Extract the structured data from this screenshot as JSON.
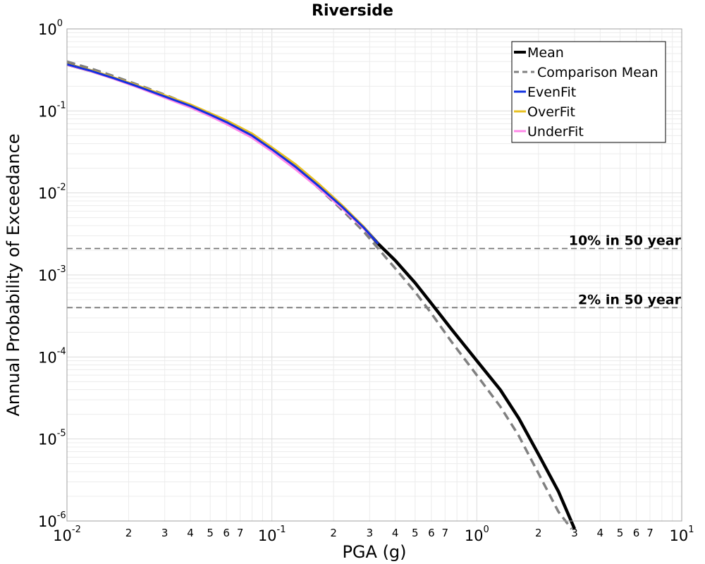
{
  "chart_data": {
    "type": "line",
    "title": "Riverside",
    "xlabel": "PGA (g)",
    "ylabel": "Annual Probability of Exceedance",
    "x_scale": "log",
    "y_scale": "log",
    "xlim": [
      0.01,
      10
    ],
    "ylim": [
      1e-06,
      1
    ],
    "grid": true,
    "legend_position": "top-right",
    "x_major_ticks": [
      {
        "base": "10",
        "exp": "-2",
        "value": 0.01
      },
      {
        "base": "10",
        "exp": "-1",
        "value": 0.1
      },
      {
        "base": "10",
        "exp": "0",
        "value": 1
      },
      {
        "base": "10",
        "exp": "1",
        "value": 10
      }
    ],
    "x_minor_tick_labels": [
      "2",
      "3",
      "4",
      "5",
      "6",
      "7"
    ],
    "y_major_ticks": [
      {
        "base": "10",
        "exp": "0",
        "value": 1
      },
      {
        "base": "10",
        "exp": "-1",
        "value": 0.1
      },
      {
        "base": "10",
        "exp": "-2",
        "value": 0.01
      },
      {
        "base": "10",
        "exp": "-3",
        "value": 0.001
      },
      {
        "base": "10",
        "exp": "-4",
        "value": 0.0001
      },
      {
        "base": "10",
        "exp": "-5",
        "value": 1e-05
      },
      {
        "base": "10",
        "exp": "-6",
        "value": 1e-06
      }
    ],
    "reference_lines": [
      {
        "label": "10% in 50 year",
        "y": 0.0021,
        "color": "#777777"
      },
      {
        "label": "2% in 50 year",
        "y": 0.0004,
        "color": "#777777"
      }
    ],
    "series": [
      {
        "name": "Mean",
        "color": "#000000",
        "style": "solid",
        "x": [
          0.01,
          0.013,
          0.017,
          0.022,
          0.03,
          0.04,
          0.05,
          0.06,
          0.08,
          0.1,
          0.13,
          0.17,
          0.22,
          0.28,
          0.33,
          0.4,
          0.5,
          0.6,
          0.75,
          1.0,
          1.3,
          1.6,
          2.0,
          2.5,
          3.0
        ],
        "y": [
          0.37,
          0.31,
          0.25,
          0.2,
          0.15,
          0.115,
          0.09,
          0.073,
          0.05,
          0.034,
          0.021,
          0.012,
          0.0068,
          0.0038,
          0.0024,
          0.0015,
          0.0008,
          0.00045,
          0.00022,
          9e-05,
          4e-05,
          1.8e-05,
          6.5e-06,
          2.3e-06,
          8e-07
        ]
      },
      {
        "name": "Comparison Mean",
        "color": "#808080",
        "style": "dashed",
        "x": [
          0.01,
          0.013,
          0.017,
          0.022,
          0.03,
          0.04,
          0.05,
          0.06,
          0.08,
          0.1,
          0.13,
          0.17,
          0.22,
          0.28,
          0.33,
          0.4,
          0.5,
          0.6,
          0.75,
          1.0,
          1.3,
          1.6,
          2.0,
          2.5,
          2.9
        ],
        "y": [
          0.4,
          0.33,
          0.265,
          0.21,
          0.158,
          0.118,
          0.091,
          0.072,
          0.049,
          0.033,
          0.02,
          0.0113,
          0.0062,
          0.0034,
          0.0021,
          0.0012,
          0.00062,
          0.00034,
          0.000155,
          6e-05,
          2.5e-05,
          1.1e-05,
          3.8e-06,
          1.3e-06,
          8e-07
        ]
      },
      {
        "name": "EvenFit",
        "color": "#1030e0",
        "style": "solid",
        "x": [
          0.01,
          0.013,
          0.017,
          0.022,
          0.03,
          0.04,
          0.05,
          0.06,
          0.08,
          0.1,
          0.13,
          0.17,
          0.22,
          0.28,
          0.33
        ],
        "y": [
          0.37,
          0.31,
          0.25,
          0.2,
          0.15,
          0.115,
          0.09,
          0.073,
          0.05,
          0.034,
          0.021,
          0.012,
          0.0068,
          0.0038,
          0.0024
        ]
      },
      {
        "name": "OverFit",
        "color": "#e8c020",
        "style": "solid",
        "x": [
          0.01,
          0.013,
          0.017,
          0.022,
          0.03,
          0.04,
          0.05,
          0.06,
          0.08,
          0.1,
          0.13,
          0.17,
          0.22,
          0.28,
          0.33
        ],
        "y": [
          0.375,
          0.315,
          0.255,
          0.205,
          0.155,
          0.12,
          0.094,
          0.077,
          0.053,
          0.036,
          0.0225,
          0.0128,
          0.0071,
          0.0039,
          0.0024
        ]
      },
      {
        "name": "UnderFit",
        "color": "#ff88e8",
        "style": "solid",
        "x": [
          0.01,
          0.013,
          0.017,
          0.022,
          0.03,
          0.04,
          0.05,
          0.06,
          0.08,
          0.1,
          0.13,
          0.17,
          0.22,
          0.28,
          0.33
        ],
        "y": [
          0.365,
          0.305,
          0.245,
          0.195,
          0.145,
          0.11,
          0.086,
          0.069,
          0.047,
          0.032,
          0.0195,
          0.0113,
          0.0065,
          0.0037,
          0.0024
        ]
      }
    ]
  }
}
